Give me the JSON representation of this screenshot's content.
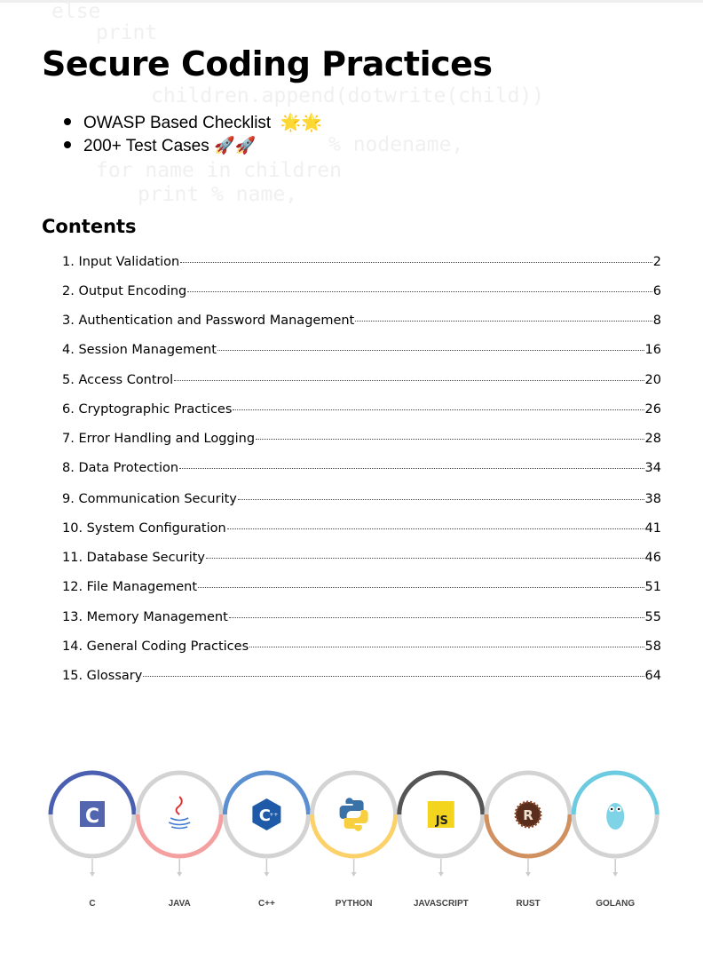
{
  "background_code": [
    "else",
    "  print",
    "    children.append(dotwrite(child))",
    "                 % nodename,",
    "  for name in children",
    "     print       % name,"
  ],
  "title": "Secure Coding Practices",
  "bullets": [
    {
      "text": "OWASP Based Checklist",
      "emoji": "🌟🌟"
    },
    {
      "text": "200+ Test Cases",
      "emoji": "🚀🚀"
    }
  ],
  "contents_heading": "Contents",
  "toc": [
    {
      "title": "1. Input Validation",
      "page": "2"
    },
    {
      "title": "2. Output Encoding",
      "page": "6"
    },
    {
      "title": "3. Authentication and Password Management",
      "page": "8"
    },
    {
      "title": "4. Session Management",
      "page": "16"
    },
    {
      "title": "5. Access Control",
      "page": "20"
    },
    {
      "title": "6. Cryptographic Practices",
      "page": "26"
    },
    {
      "title": "7. Error Handling and Logging",
      "page": "28"
    },
    {
      "title": "8. Data Protection",
      "page": "34"
    },
    {
      "title": "9. Communication Security",
      "page": "38"
    },
    {
      "title": "10. System Configuration",
      "page": "41"
    },
    {
      "title": "11. Database Security",
      "page": "46"
    },
    {
      "title": "12. File Management",
      "page": "51"
    },
    {
      "title": "13. Memory Management",
      "page": "55"
    },
    {
      "title": "14. General Coding Practices",
      "page": "58"
    },
    {
      "title": "15. Glossary",
      "page": "64"
    }
  ],
  "languages": [
    {
      "name": "C",
      "icon": "c-logo-icon",
      "color": "#4a5fb0",
      "half": "top"
    },
    {
      "name": "JAVA",
      "icon": "java-logo-icon",
      "color": "#f4a0a0",
      "half": "bottom"
    },
    {
      "name": "C++",
      "icon": "cpp-logo-icon",
      "color": "#5b8fd0",
      "half": "top"
    },
    {
      "name": "PYTHON",
      "icon": "python-logo-icon",
      "color": "#fcd16a",
      "half": "bottom"
    },
    {
      "name": "JAVASCRIPT",
      "icon": "javascript-logo-icon",
      "color": "#555555",
      "half": "top"
    },
    {
      "name": "RUST",
      "icon": "rust-logo-icon",
      "color": "#d09060",
      "half": "bottom"
    },
    {
      "name": "GOLANG",
      "icon": "golang-gopher-icon",
      "color": "#6ccbe0",
      "half": "top"
    }
  ],
  "icon_text": {
    "c": "C",
    "js": "JS",
    "cpp": "C++",
    "rust": "R"
  }
}
